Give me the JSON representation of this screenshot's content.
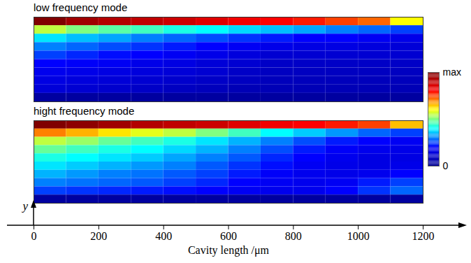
{
  "chart_data": [
    {
      "type": "heatmap",
      "title": "low frequency mode",
      "x": [
        50,
        150,
        250,
        350,
        450,
        550,
        650,
        750,
        850,
        950,
        1050,
        1150
      ],
      "y": [
        0.95,
        0.85,
        0.75,
        0.65,
        0.55,
        0.45,
        0.35,
        0.25,
        0.15,
        0.05
      ],
      "cells": [
        [
          1.0,
          0.95,
          0.92,
          0.9,
          0.88,
          0.85,
          0.82,
          0.8,
          0.78,
          0.75,
          0.72,
          0.6
        ],
        [
          0.55,
          0.5,
          0.47,
          0.45,
          0.42,
          0.4,
          0.37,
          0.35,
          0.33,
          0.3,
          0.28,
          0.25
        ],
        [
          0.38,
          0.35,
          0.33,
          0.3,
          0.28,
          0.26,
          0.24,
          0.22,
          0.2,
          0.2,
          0.18,
          0.16
        ],
        [
          0.3,
          0.28,
          0.26,
          0.24,
          0.22,
          0.2,
          0.18,
          0.16,
          0.15,
          0.15,
          0.14,
          0.13
        ],
        [
          0.25,
          0.23,
          0.21,
          0.2,
          0.18,
          0.16,
          0.14,
          0.12,
          0.12,
          0.12,
          0.12,
          0.12
        ],
        [
          0.2,
          0.19,
          0.18,
          0.16,
          0.15,
          0.13,
          0.12,
          0.1,
          0.1,
          0.1,
          0.1,
          0.1
        ],
        [
          0.17,
          0.16,
          0.15,
          0.14,
          0.13,
          0.12,
          0.1,
          0.09,
          0.09,
          0.09,
          0.09,
          0.09
        ],
        [
          0.15,
          0.14,
          0.13,
          0.12,
          0.11,
          0.1,
          0.09,
          0.08,
          0.08,
          0.08,
          0.08,
          0.08
        ],
        [
          0.13,
          0.12,
          0.11,
          0.1,
          0.09,
          0.08,
          0.07,
          0.07,
          0.07,
          0.07,
          0.07,
          0.07
        ],
        [
          0.03,
          0.03,
          0.03,
          0.03,
          0.03,
          0.03,
          0.03,
          0.03,
          0.03,
          0.03,
          0.03,
          0.03
        ]
      ],
      "xlim": [
        0,
        1200
      ],
      "ylim": [
        0,
        1
      ],
      "tick_labels": false
    },
    {
      "type": "heatmap",
      "title": "hight frequency mode",
      "x": [
        50,
        150,
        250,
        350,
        450,
        550,
        650,
        750,
        850,
        950,
        1050,
        1150
      ],
      "y": [
        0.95,
        0.85,
        0.75,
        0.65,
        0.55,
        0.45,
        0.35,
        0.25,
        0.15,
        0.05
      ],
      "cells": [
        [
          1.0,
          0.98,
          0.95,
          0.92,
          0.9,
          0.88,
          0.85,
          0.82,
          0.8,
          0.78,
          0.75,
          0.65
        ],
        [
          0.7,
          0.66,
          0.62,
          0.58,
          0.55,
          0.5,
          0.45,
          0.4,
          0.36,
          0.32,
          0.28,
          0.25
        ],
        [
          0.55,
          0.52,
          0.48,
          0.45,
          0.42,
          0.38,
          0.34,
          0.3,
          0.26,
          0.22,
          0.2,
          0.18
        ],
        [
          0.48,
          0.45,
          0.42,
          0.4,
          0.37,
          0.34,
          0.3,
          0.26,
          0.22,
          0.19,
          0.17,
          0.16
        ],
        [
          0.42,
          0.4,
          0.38,
          0.36,
          0.33,
          0.3,
          0.27,
          0.23,
          0.2,
          0.17,
          0.15,
          0.15
        ],
        [
          0.38,
          0.36,
          0.34,
          0.32,
          0.3,
          0.27,
          0.24,
          0.21,
          0.18,
          0.16,
          0.15,
          0.16
        ],
        [
          0.34,
          0.32,
          0.3,
          0.29,
          0.27,
          0.25,
          0.22,
          0.19,
          0.17,
          0.16,
          0.17,
          0.2
        ],
        [
          0.3,
          0.29,
          0.28,
          0.27,
          0.25,
          0.23,
          0.2,
          0.18,
          0.17,
          0.18,
          0.22,
          0.25
        ],
        [
          0.25,
          0.24,
          0.23,
          0.22,
          0.21,
          0.2,
          0.18,
          0.17,
          0.17,
          0.2,
          0.24,
          0.28
        ],
        [
          0.03,
          0.03,
          0.03,
          0.03,
          0.03,
          0.03,
          0.03,
          0.03,
          0.03,
          0.03,
          0.03,
          0.03
        ]
      ],
      "xlim": [
        0,
        1200
      ],
      "ylim": [
        0,
        1
      ],
      "xticks": [
        0,
        200,
        400,
        600,
        800,
        1000,
        1200
      ],
      "xlabel": "Cavity length /μm",
      "ylabel": "y",
      "tick_labels": "x",
      "colorbar": {
        "range": [
          0,
          1
        ],
        "ticks": [
          0,
          {
            "value": 1,
            "label": "max"
          }
        ]
      }
    }
  ]
}
